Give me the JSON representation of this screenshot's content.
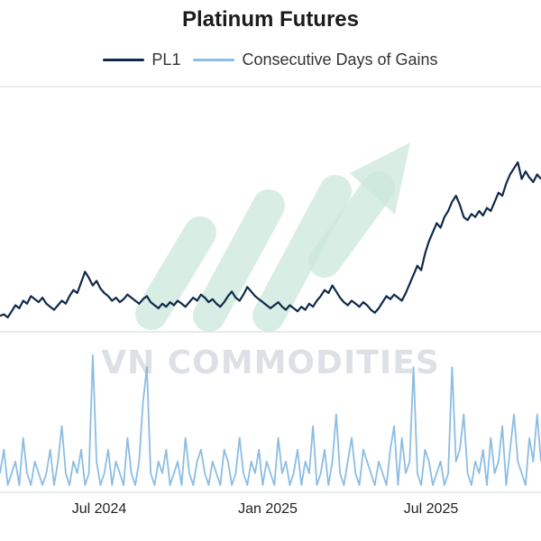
{
  "chart_data": {
    "type": "line",
    "title": "Platinum Futures",
    "legend_position": "top-center",
    "series": [
      {
        "name": "PL1",
        "color": "#0f2a4a",
        "panel": "upper",
        "values": [
          0.05,
          0.06,
          0.04,
          0.08,
          0.12,
          0.1,
          0.15,
          0.13,
          0.18,
          0.16,
          0.14,
          0.17,
          0.13,
          0.11,
          0.09,
          0.12,
          0.15,
          0.13,
          0.18,
          0.22,
          0.2,
          0.27,
          0.34,
          0.3,
          0.25,
          0.28,
          0.23,
          0.2,
          0.18,
          0.15,
          0.17,
          0.14,
          0.16,
          0.19,
          0.17,
          0.15,
          0.13,
          0.16,
          0.18,
          0.14,
          0.12,
          0.1,
          0.13,
          0.11,
          0.14,
          0.12,
          0.15,
          0.13,
          0.11,
          0.14,
          0.17,
          0.15,
          0.19,
          0.17,
          0.14,
          0.16,
          0.13,
          0.11,
          0.14,
          0.18,
          0.21,
          0.17,
          0.15,
          0.19,
          0.24,
          0.21,
          0.18,
          0.16,
          0.14,
          0.12,
          0.1,
          0.12,
          0.14,
          0.11,
          0.09,
          0.12,
          0.1,
          0.08,
          0.11,
          0.09,
          0.13,
          0.11,
          0.15,
          0.18,
          0.22,
          0.2,
          0.25,
          0.21,
          0.17,
          0.14,
          0.12,
          0.15,
          0.13,
          0.11,
          0.14,
          0.12,
          0.09,
          0.07,
          0.1,
          0.14,
          0.18,
          0.16,
          0.19,
          0.17,
          0.15,
          0.2,
          0.26,
          0.32,
          0.38,
          0.35,
          0.46,
          0.54,
          0.6,
          0.66,
          0.63,
          0.7,
          0.74,
          0.8,
          0.84,
          0.78,
          0.7,
          0.68,
          0.72,
          0.7,
          0.74,
          0.71,
          0.76,
          0.74,
          0.8,
          0.86,
          0.84,
          0.92,
          0.98,
          1.02,
          1.06,
          0.95,
          1.0,
          0.96,
          0.93,
          0.98,
          0.95
        ]
      },
      {
        "name": "Consecutive Days of Gains",
        "color": "#8cbde3",
        "panel": "lower",
        "values": [
          1,
          3,
          0,
          1,
          2,
          0,
          4,
          1,
          0,
          2,
          1,
          0,
          1,
          3,
          0,
          2,
          5,
          1,
          0,
          2,
          1,
          3,
          0,
          1,
          11,
          2,
          0,
          1,
          3,
          0,
          2,
          1,
          0,
          4,
          1,
          0,
          2,
          7,
          10,
          1,
          0,
          2,
          1,
          3,
          0,
          1,
          2,
          0,
          4,
          1,
          0,
          2,
          3,
          1,
          0,
          2,
          1,
          0,
          3,
          2,
          0,
          1,
          4,
          1,
          0,
          2,
          1,
          3,
          0,
          2,
          1,
          0,
          4,
          1,
          2,
          0,
          1,
          3,
          0,
          2,
          1,
          5,
          0,
          1,
          3,
          0,
          2,
          6,
          1,
          0,
          2,
          4,
          1,
          0,
          3,
          2,
          1,
          0,
          2,
          1,
          0,
          3,
          5,
          0,
          4,
          1,
          2,
          10,
          1,
          0,
          3,
          2,
          0,
          1,
          2,
          0,
          1,
          10,
          2,
          3,
          6,
          1,
          0,
          2,
          1,
          3,
          0,
          4,
          1,
          2,
          5,
          0,
          3,
          6,
          2,
          1,
          0,
          4,
          2,
          6,
          2
        ]
      }
    ],
    "x_tick_labels": [
      "Jul 2024",
      "Jan 2025",
      "Jul 2025"
    ],
    "grid": false
  },
  "watermark": "VN COMMODITIES",
  "colors": {
    "panel_border": "#dfe3e8",
    "arrow": "#cfe9dd"
  }
}
